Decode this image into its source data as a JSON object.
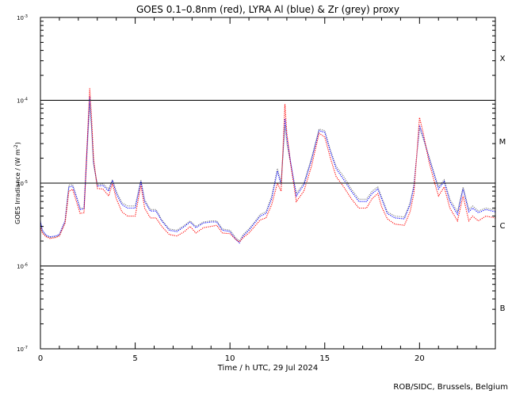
{
  "chart_data": {
    "type": "line",
    "title": "GOES 0.1–0.8nm (red), LYRA Al (blue) & Zr (grey) proxy",
    "xlabel": "Time / h UTC, 29 Jul 2024",
    "ylabel": "GOES Irradiance / (W m",
    "ylabel_sup": "-2",
    "ylabel_close": ")",
    "xlim": [
      0,
      24
    ],
    "ylim": [
      1e-07,
      0.001
    ],
    "yscale": "log",
    "x_ticks": [
      "0",
      "5",
      "10",
      "15",
      "20"
    ],
    "y_tick_mantissa": "10",
    "y_tick_exponents": [
      "-3",
      "-4",
      "-5",
      "-6",
      "-7"
    ],
    "flare_class_lines": [
      0.0001,
      1e-05,
      1e-06
    ],
    "flare_classes": [
      "X",
      "M",
      "C",
      "B"
    ],
    "credit": "ROB/SIDC, Brussels, Belgium",
    "series": [
      {
        "color": "#ff0000",
        "points": [
          [
            0.0,
            3e-06
          ],
          [
            0.1,
            2.5e-06
          ],
          [
            0.3,
            2.25e-06
          ],
          [
            0.5,
            2.15e-06
          ],
          [
            0.8,
            2.2e-06
          ],
          [
            1.0,
            2.3e-06
          ],
          [
            1.3,
            3.3e-06
          ],
          [
            1.5,
            8e-06
          ],
          [
            1.7,
            8.4e-06
          ],
          [
            1.9,
            6e-06
          ],
          [
            2.1,
            4.3e-06
          ],
          [
            2.3,
            4.4e-06
          ],
          [
            2.6,
            0.00014
          ],
          [
            2.7,
            6e-05
          ],
          [
            2.8,
            2e-05
          ],
          [
            3.0,
            8.6e-06
          ],
          [
            3.3,
            8.5e-06
          ],
          [
            3.6,
            7e-06
          ],
          [
            3.8,
            9.8e-06
          ],
          [
            4.0,
            6.5e-06
          ],
          [
            4.3,
            4.5e-06
          ],
          [
            4.6,
            4e-06
          ],
          [
            5.0,
            4e-06
          ],
          [
            5.3,
            9.5e-06
          ],
          [
            5.5,
            5e-06
          ],
          [
            5.8,
            3.8e-06
          ],
          [
            6.1,
            3.8e-06
          ],
          [
            6.4,
            3e-06
          ],
          [
            6.8,
            2.4e-06
          ],
          [
            7.2,
            2.3e-06
          ],
          [
            7.6,
            2.6e-06
          ],
          [
            7.9,
            3e-06
          ],
          [
            8.2,
            2.5e-06
          ],
          [
            8.6,
            2.9e-06
          ],
          [
            9.0,
            3e-06
          ],
          [
            9.3,
            3.1e-06
          ],
          [
            9.6,
            2.5e-06
          ],
          [
            10.0,
            2.45e-06
          ],
          [
            10.3,
            2.1e-06
          ],
          [
            10.5,
            1.95e-06
          ],
          [
            10.7,
            2.2e-06
          ],
          [
            11.0,
            2.5e-06
          ],
          [
            11.3,
            3e-06
          ],
          [
            11.6,
            3.6e-06
          ],
          [
            11.9,
            3.8e-06
          ],
          [
            12.2,
            5.5e-06
          ],
          [
            12.5,
            1e-05
          ],
          [
            12.7,
            8e-06
          ],
          [
            12.9,
            9e-05
          ],
          [
            13.0,
            4e-05
          ],
          [
            13.2,
            1.7e-05
          ],
          [
            13.5,
            6e-06
          ],
          [
            13.9,
            8e-06
          ],
          [
            14.3,
            1.6e-05
          ],
          [
            14.7,
            4e-05
          ],
          [
            15.0,
            3.6e-05
          ],
          [
            15.3,
            2e-05
          ],
          [
            15.6,
            1.2e-05
          ],
          [
            16.0,
            9e-06
          ],
          [
            16.4,
            6.5e-06
          ],
          [
            16.8,
            5e-06
          ],
          [
            17.2,
            5e-06
          ],
          [
            17.5,
            6.5e-06
          ],
          [
            17.8,
            7.5e-06
          ],
          [
            18.0,
            5.2e-06
          ],
          [
            18.3,
            3.7e-06
          ],
          [
            18.7,
            3.2e-06
          ],
          [
            19.2,
            3.1e-06
          ],
          [
            19.5,
            4.5e-06
          ],
          [
            19.7,
            7.5e-06
          ],
          [
            20.0,
            6.2e-05
          ],
          [
            20.2,
            4e-05
          ],
          [
            20.5,
            1.8e-05
          ],
          [
            20.8,
            1e-05
          ],
          [
            21.0,
            7e-06
          ],
          [
            21.3,
            9e-06
          ],
          [
            21.6,
            5e-06
          ],
          [
            22.0,
            3.5e-06
          ],
          [
            22.3,
            7e-06
          ],
          [
            22.6,
            3.5e-06
          ],
          [
            22.8,
            4e-06
          ],
          [
            23.1,
            3.5e-06
          ],
          [
            23.5,
            4e-06
          ],
          [
            24.0,
            3.8e-06
          ]
        ]
      },
      {
        "color": "#0000ff",
        "points": [
          [
            0.0,
            3.5e-06
          ],
          [
            0.1,
            2.7e-06
          ],
          [
            0.3,
            2.35e-06
          ],
          [
            0.5,
            2.25e-06
          ],
          [
            0.8,
            2.3e-06
          ],
          [
            1.0,
            2.4e-06
          ],
          [
            1.3,
            3.5e-06
          ],
          [
            1.5,
            9e-06
          ],
          [
            1.7,
            9.2e-06
          ],
          [
            1.9,
            6.8e-06
          ],
          [
            2.1,
            4.8e-06
          ],
          [
            2.3,
            4.9e-06
          ],
          [
            2.6,
            0.00011
          ],
          [
            2.7,
            5e-05
          ],
          [
            2.8,
            1.8e-05
          ],
          [
            3.0,
            9.2e-06
          ],
          [
            3.3,
            9.4e-06
          ],
          [
            3.6,
            8e-06
          ],
          [
            3.8,
            1.08e-05
          ],
          [
            4.0,
            7.5e-06
          ],
          [
            4.3,
            5.5e-06
          ],
          [
            4.6,
            5e-06
          ],
          [
            5.0,
            5e-06
          ],
          [
            5.3,
            1.05e-05
          ],
          [
            5.5,
            6e-06
          ],
          [
            5.8,
            4.6e-06
          ],
          [
            6.1,
            4.6e-06
          ],
          [
            6.4,
            3.5e-06
          ],
          [
            6.8,
            2.7e-06
          ],
          [
            7.2,
            2.6e-06
          ],
          [
            7.6,
            3e-06
          ],
          [
            7.9,
            3.4e-06
          ],
          [
            8.2,
            2.9e-06
          ],
          [
            8.6,
            3.3e-06
          ],
          [
            9.0,
            3.4e-06
          ],
          [
            9.3,
            3.4e-06
          ],
          [
            9.6,
            2.7e-06
          ],
          [
            10.0,
            2.6e-06
          ],
          [
            10.3,
            2.1e-06
          ],
          [
            10.5,
            1.9e-06
          ],
          [
            10.7,
            2.3e-06
          ],
          [
            11.0,
            2.7e-06
          ],
          [
            11.3,
            3.3e-06
          ],
          [
            11.6,
            4e-06
          ],
          [
            11.9,
            4.3e-06
          ],
          [
            12.2,
            6.5e-06
          ],
          [
            12.5,
            1.4e-05
          ],
          [
            12.7,
            9.5e-06
          ],
          [
            12.9,
            6e-05
          ],
          [
            13.0,
            3.5e-05
          ],
          [
            13.2,
            1.8e-05
          ],
          [
            13.5,
            7e-06
          ],
          [
            13.9,
            9.5e-06
          ],
          [
            14.3,
            1.9e-05
          ],
          [
            14.7,
            4.3e-05
          ],
          [
            15.0,
            4.1e-05
          ],
          [
            15.3,
            2.4e-05
          ],
          [
            15.6,
            1.5e-05
          ],
          [
            16.0,
            1.1e-05
          ],
          [
            16.4,
            8e-06
          ],
          [
            16.8,
            6e-06
          ],
          [
            17.2,
            6e-06
          ],
          [
            17.5,
            7.5e-06
          ],
          [
            17.8,
            8.5e-06
          ],
          [
            18.0,
            6.5e-06
          ],
          [
            18.3,
            4.3e-06
          ],
          [
            18.7,
            3.8e-06
          ],
          [
            19.2,
            3.7e-06
          ],
          [
            19.5,
            5.5e-06
          ],
          [
            19.7,
            9e-06
          ],
          [
            20.0,
            5e-05
          ],
          [
            20.2,
            3.6e-05
          ],
          [
            20.5,
            2e-05
          ],
          [
            20.8,
            1.2e-05
          ],
          [
            21.0,
            8.5e-06
          ],
          [
            21.3,
            1.05e-05
          ],
          [
            21.6,
            6e-06
          ],
          [
            22.0,
            4.2e-06
          ],
          [
            22.3,
            8.5e-06
          ],
          [
            22.6,
            4.5e-06
          ],
          [
            22.8,
            5e-06
          ],
          [
            23.1,
            4.4e-06
          ],
          [
            23.5,
            4.8e-06
          ],
          [
            24.0,
            4.5e-06
          ]
        ]
      },
      {
        "color": "#808080",
        "points": [
          [
            0.0,
            3.4e-06
          ],
          [
            0.1,
            2.6e-06
          ],
          [
            0.3,
            2.3e-06
          ],
          [
            0.5,
            2.2e-06
          ],
          [
            0.8,
            2.25e-06
          ],
          [
            1.0,
            2.35e-06
          ],
          [
            1.3,
            3.4e-06
          ],
          [
            1.5,
            9.5e-06
          ],
          [
            1.7,
            9.6e-06
          ],
          [
            1.9,
            7e-06
          ],
          [
            2.1,
            5e-06
          ],
          [
            2.3,
            5e-06
          ],
          [
            2.6,
            9e-05
          ],
          [
            2.7,
            4.5e-05
          ],
          [
            2.8,
            1.7e-05
          ],
          [
            3.0,
            9.6e-06
          ],
          [
            3.3,
            9.8e-06
          ],
          [
            3.6,
            8.5e-06
          ],
          [
            3.8,
            1.1e-05
          ],
          [
            4.0,
            8e-06
          ],
          [
            4.3,
            5.8e-06
          ],
          [
            4.6,
            5.3e-06
          ],
          [
            5.0,
            5.3e-06
          ],
          [
            5.3,
            1.1e-05
          ],
          [
            5.5,
            6.3e-06
          ],
          [
            5.8,
            4.8e-06
          ],
          [
            6.1,
            4.8e-06
          ],
          [
            6.4,
            3.6e-06
          ],
          [
            6.8,
            2.8e-06
          ],
          [
            7.2,
            2.7e-06
          ],
          [
            7.6,
            3.1e-06
          ],
          [
            7.9,
            3.5e-06
          ],
          [
            8.2,
            3e-06
          ],
          [
            8.6,
            3.4e-06
          ],
          [
            9.0,
            3.5e-06
          ],
          [
            9.3,
            3.5e-06
          ],
          [
            9.6,
            2.8e-06
          ],
          [
            10.0,
            2.7e-06
          ],
          [
            10.3,
            2.2e-06
          ],
          [
            10.5,
            2e-06
          ],
          [
            10.7,
            2.4e-06
          ],
          [
            11.0,
            2.8e-06
          ],
          [
            11.3,
            3.4e-06
          ],
          [
            11.6,
            4.2e-06
          ],
          [
            11.9,
            4.5e-06
          ],
          [
            12.2,
            7e-06
          ],
          [
            12.5,
            1.5e-05
          ],
          [
            12.7,
            1e-05
          ],
          [
            12.9,
            5e-05
          ],
          [
            13.0,
            3e-05
          ],
          [
            13.2,
            1.7e-05
          ],
          [
            13.5,
            7.5e-06
          ],
          [
            13.9,
            1e-05
          ],
          [
            14.3,
            2e-05
          ],
          [
            14.7,
            4.5e-05
          ],
          [
            15.0,
            4.3e-05
          ],
          [
            15.3,
            2.5e-05
          ],
          [
            15.6,
            1.6e-05
          ],
          [
            16.0,
            1.2e-05
          ],
          [
            16.4,
            8.5e-06
          ],
          [
            16.8,
            6.4e-06
          ],
          [
            17.2,
            6.4e-06
          ],
          [
            17.5,
            8e-06
          ],
          [
            17.8,
            9e-06
          ],
          [
            18.0,
            6.8e-06
          ],
          [
            18.3,
            4.5e-06
          ],
          [
            18.7,
            4e-06
          ],
          [
            19.2,
            3.9e-06
          ],
          [
            19.5,
            5.8e-06
          ],
          [
            19.7,
            9.5e-06
          ],
          [
            20.0,
            4.6e-05
          ],
          [
            20.2,
            3.4e-05
          ],
          [
            20.5,
            2.1e-05
          ],
          [
            20.8,
            1.25e-05
          ],
          [
            21.0,
            9e-06
          ],
          [
            21.3,
            1.1e-05
          ],
          [
            21.6,
            6.4e-06
          ],
          [
            22.0,
            4.5e-06
          ],
          [
            22.3,
            9e-06
          ],
          [
            22.6,
            4.8e-06
          ],
          [
            22.8,
            5.3e-06
          ],
          [
            23.1,
            4.6e-06
          ],
          [
            23.5,
            5e-06
          ],
          [
            24.0,
            4.7e-06
          ]
        ]
      }
    ]
  }
}
